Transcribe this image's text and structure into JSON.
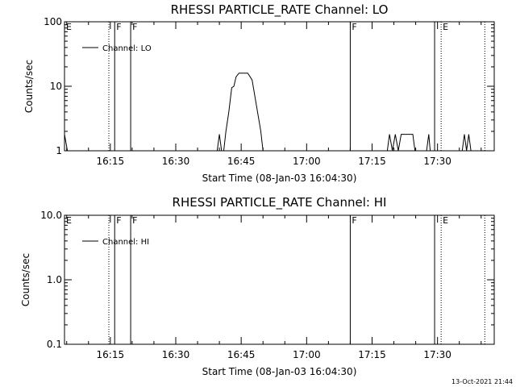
{
  "footer_timestamp": "13-Oct-2021 21:44",
  "colors": {
    "background": "#ffffff",
    "foreground": "#000000"
  },
  "chart_data": [
    {
      "type": "line",
      "title": "RHESSI PARTICLE_RATE Channel: LO",
      "xlabel": "Start Time (08-Jan-03 16:04:30)",
      "ylabel": "Counts/sec",
      "y_scale": "log",
      "ylim": [
        1,
        100
      ],
      "y_ticks": [
        1,
        10,
        100
      ],
      "y_tick_labels": [
        "1",
        "10",
        "100"
      ],
      "xlim": [
        "16:04:30",
        "17:43:00"
      ],
      "x_ticks": [
        "16:15",
        "16:30",
        "16:45",
        "17:00",
        "17:15",
        "17:30"
      ],
      "legend": {
        "entries": [
          "Channel: LO"
        ],
        "position": "top-left"
      },
      "grid": false,
      "series": [
        {
          "name": "Channel: LO",
          "points": [
            [
              "16:04:30",
              1.8
            ],
            [
              "16:05:10",
              1.0
            ],
            [
              "16:39:30",
              1.0
            ],
            [
              "16:40:00",
              1.8
            ],
            [
              "16:40:30",
              1.0
            ],
            [
              "16:41:00",
              1.0
            ],
            [
              "16:41:30",
              2.0
            ],
            [
              "16:42:10",
              4.0
            ],
            [
              "16:42:50",
              9.5
            ],
            [
              "16:43:20",
              10.0
            ],
            [
              "16:43:50",
              14.0
            ],
            [
              "16:44:30",
              16.0
            ],
            [
              "16:46:30",
              16.0
            ],
            [
              "16:47:30",
              12.5
            ],
            [
              "16:48:30",
              5.0
            ],
            [
              "16:49:30",
              2.0
            ],
            [
              "16:50:00",
              1.0
            ],
            [
              "17:18:30",
              1.0
            ],
            [
              "17:19:00",
              1.8
            ],
            [
              "17:19:40",
              1.0
            ],
            [
              "17:20:20",
              1.8
            ],
            [
              "17:21:00",
              1.0
            ],
            [
              "17:21:40",
              1.8
            ],
            [
              "17:24:20",
              1.8
            ],
            [
              "17:24:50",
              1.0
            ],
            [
              "17:27:30",
              1.0
            ],
            [
              "17:28:00",
              1.8
            ],
            [
              "17:28:20",
              1.0
            ],
            [
              "17:35:40",
              1.0
            ],
            [
              "17:36:10",
              1.8
            ],
            [
              "17:36:40",
              1.0
            ],
            [
              "17:37:10",
              1.8
            ],
            [
              "17:37:40",
              1.0
            ]
          ]
        }
      ],
      "markers": [
        {
          "time": "16:04:30",
          "label": "E",
          "style": "dotted"
        },
        {
          "time": "16:14:40",
          "label": "",
          "style": "dotted"
        },
        {
          "time": "16:16:00",
          "label": "F",
          "style": "solid"
        },
        {
          "time": "16:19:40",
          "label": "F",
          "style": "solid"
        },
        {
          "time": "17:10:00",
          "label": "F",
          "style": "solid"
        },
        {
          "time": "17:29:20",
          "label": "",
          "style": "solid"
        },
        {
          "time": "17:30:50",
          "label": "E",
          "style": "dotted"
        },
        {
          "time": "17:40:50",
          "label": "",
          "style": "dotted"
        }
      ]
    },
    {
      "type": "line",
      "title": "RHESSI PARTICLE_RATE Channel: HI",
      "xlabel": "Start Time (08-Jan-03 16:04:30)",
      "ylabel": "Counts/sec",
      "y_scale": "log",
      "ylim": [
        0.1,
        10
      ],
      "y_ticks": [
        0.1,
        1,
        10
      ],
      "y_tick_labels": [
        "0.1",
        "1.0",
        "10.0"
      ],
      "xlim": [
        "16:04:30",
        "17:43:00"
      ],
      "x_ticks": [
        "16:15",
        "16:30",
        "16:45",
        "17:00",
        "17:15",
        "17:30"
      ],
      "legend": {
        "entries": [
          "Channel: HI"
        ],
        "position": "top-left"
      },
      "grid": false,
      "series": [
        {
          "name": "Channel: HI",
          "points": []
        }
      ],
      "markers": [
        {
          "time": "16:04:30",
          "label": "E",
          "style": "dotted"
        },
        {
          "time": "16:14:40",
          "label": "",
          "style": "dotted"
        },
        {
          "time": "16:16:00",
          "label": "F",
          "style": "solid"
        },
        {
          "time": "16:19:40",
          "label": "F",
          "style": "solid"
        },
        {
          "time": "17:10:00",
          "label": "F",
          "style": "solid"
        },
        {
          "time": "17:29:20",
          "label": "",
          "style": "solid"
        },
        {
          "time": "17:30:50",
          "label": "E",
          "style": "dotted"
        },
        {
          "time": "17:40:50",
          "label": "",
          "style": "dotted"
        }
      ]
    }
  ]
}
